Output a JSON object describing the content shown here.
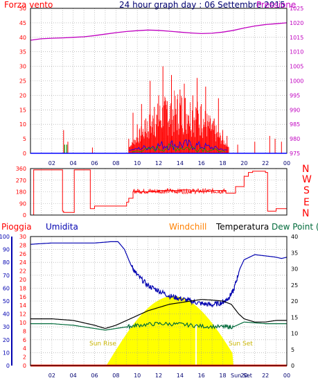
{
  "colors": {
    "background": "#ffffff",
    "grid": "#9a9a9a",
    "axis": "#000000",
    "wind": "#ff0000",
    "wind_gust": "#00a000",
    "wind_blue": "#0000ff",
    "pressure": "#c000c0",
    "direction": "#ff0000",
    "rain_axis": "#ff0000",
    "humidity": "#0000b0",
    "temperature": "#000000",
    "dewpoint": "#006a3a",
    "windchill": "#ff8000",
    "sun": "#ffff00",
    "sun_label": "#c8b400",
    "hour_axis": "#000070"
  },
  "titles": {
    "top_left": "Forza vento",
    "top_center": "24 hour graph day : 06 Settembre 2015",
    "top_right": "Pressione",
    "pioggia": "Pioggia",
    "umidita": "Umidita",
    "windchill": "Windchill",
    "temperatura": "Temperatura",
    "dewpoint": "Dew Point (°C"
  },
  "compass": [
    "N",
    "W",
    "S",
    "E",
    "N"
  ],
  "sun_labels": {
    "sunrise": "Sun Rise",
    "sunset": "Sun Set",
    "sunset_bottom": "Sun Set"
  },
  "chart_data": [
    {
      "type": "line",
      "name": "wind-pressure",
      "title": "24 hour graph day : 06 Settembre 2015",
      "xlabel": "",
      "ylabel": "Forza vento",
      "x_ticks": [
        "02",
        "04",
        "06",
        "08",
        "10",
        "12",
        "14",
        "16",
        "18",
        "20",
        "22",
        "00"
      ],
      "ylim": [
        0,
        50
      ],
      "y_ticks": [
        0,
        5,
        10,
        15,
        20,
        25,
        30,
        35,
        40,
        45,
        50
      ],
      "y2lim": [
        975,
        1025
      ],
      "y2_ticks": [
        975,
        980,
        985,
        990,
        995,
        1000,
        1005,
        1010,
        1015,
        1020,
        1025
      ],
      "y2label": "Pressione",
      "grid": true,
      "series": [
        {
          "name": "Pressione",
          "axis": "right",
          "x": [
            0,
            1,
            2,
            3,
            4,
            5,
            6,
            7,
            8,
            9,
            10,
            11,
            12,
            13,
            14,
            15,
            16,
            17,
            18,
            19,
            20,
            21,
            22,
            23,
            24
          ],
          "y": [
            1014,
            1014.5,
            1014.7,
            1014.8,
            1015,
            1015.2,
            1015.6,
            1016.1,
            1016.6,
            1017,
            1017.3,
            1017.5,
            1017.4,
            1017.1,
            1016.8,
            1016.5,
            1016.3,
            1016.4,
            1016.8,
            1017.4,
            1018.2,
            1018.9,
            1019.4,
            1019.7,
            1020
          ]
        },
        {
          "name": "Forza vento",
          "axis": "left",
          "x": [
            3.1,
            3.5,
            5.8,
            9.2,
            9.6,
            10.0,
            10.4,
            10.8,
            11.2,
            11.6,
            12.0,
            12.4,
            12.8,
            13.2,
            13.6,
            14.0,
            14.4,
            14.8,
            15.2,
            15.6,
            16.0,
            16.4,
            16.8,
            17.2,
            17.6,
            18.0,
            18.4,
            19.4,
            21.0,
            22.4,
            22.9,
            23.5
          ],
          "y": [
            8,
            4,
            2,
            5,
            14,
            10,
            17,
            12,
            25,
            16,
            20,
            30,
            18,
            27,
            15,
            22,
            24,
            13,
            20,
            26,
            17,
            23,
            11,
            12,
            19,
            8,
            6,
            3,
            4,
            6,
            5,
            4
          ]
        }
      ]
    },
    {
      "type": "line",
      "name": "wind-direction",
      "ylim": [
        0,
        360
      ],
      "y_ticks": [
        0,
        90,
        180,
        270,
        360
      ],
      "grid": true,
      "series": [
        {
          "name": "Direzione",
          "x": [
            0,
            0.3,
            2.0,
            3.0,
            3.1,
            4.0,
            4.1,
            5.5,
            5.6,
            6.0,
            8.8,
            9.0,
            9.2,
            9.6,
            12,
            14,
            15,
            17,
            18.3,
            19.2,
            19.5,
            20,
            20.4,
            20.8,
            22,
            22.2,
            23,
            24
          ],
          "y": [
            0,
            350,
            350,
            30,
            20,
            20,
            350,
            350,
            50,
            70,
            70,
            100,
            130,
            180,
            190,
            195,
            185,
            190,
            170,
            220,
            220,
            300,
            330,
            340,
            330,
            30,
            50,
            40
          ]
        }
      ]
    },
    {
      "type": "line",
      "name": "rain-humidity-temperature",
      "x_ticks": [
        "02",
        "04",
        "06",
        "08",
        "10",
        "12",
        "14",
        "16",
        "18",
        "20",
        "22",
        "00"
      ],
      "y_left_outer": {
        "label": "Umidita",
        "ylim": [
          0,
          100
        ],
        "ticks": [
          0,
          10,
          20,
          30,
          40,
          50,
          60,
          70,
          80,
          90,
          100
        ]
      },
      "y_left_inner": {
        "label": "Pioggia",
        "ylim": [
          0,
          30
        ],
        "ticks": [
          0,
          2,
          4,
          6,
          8,
          10,
          12,
          14,
          16,
          18,
          20,
          22,
          24,
          26,
          28,
          30
        ]
      },
      "y_right": {
        "label": "Temperatura",
        "ylim": [
          0,
          40
        ],
        "ticks": [
          0,
          5,
          10,
          15,
          20,
          25,
          30,
          35,
          40
        ]
      },
      "grid": true,
      "series": [
        {
          "name": "Umidita",
          "axis": "outer",
          "x": [
            0,
            2,
            4,
            6,
            7.5,
            8.2,
            8.8,
            9.4,
            10,
            11,
            12,
            13,
            14,
            15,
            16,
            17,
            18,
            18.5,
            19,
            19.6,
            20,
            21,
            22,
            23,
            23.5,
            24
          ],
          "y": [
            94,
            95,
            95,
            95,
            96,
            96,
            90,
            78,
            70,
            62,
            58,
            54,
            52,
            50,
            48,
            47,
            49,
            52,
            58,
            75,
            82,
            86,
            85,
            84,
            83,
            84
          ]
        },
        {
          "name": "Temperatura",
          "axis": "right",
          "x": [
            0,
            2,
            4,
            6,
            7,
            8,
            9,
            10,
            11,
            12,
            13,
            14,
            15,
            16,
            17,
            18,
            18.8,
            19.5,
            20,
            21,
            22,
            23,
            24
          ],
          "y": [
            14.5,
            14.5,
            14,
            12.5,
            11.5,
            12.5,
            14,
            15.5,
            17,
            18,
            19,
            19.5,
            20,
            20.5,
            20.3,
            20,
            19,
            16,
            14.5,
            13.5,
            13.5,
            14,
            14
          ]
        },
        {
          "name": "Dew Point",
          "axis": "right",
          "x": [
            0,
            2,
            4,
            6,
            7,
            8,
            9,
            10,
            12,
            14,
            16,
            18,
            19,
            20,
            22,
            24
          ],
          "y": [
            13,
            13,
            12.5,
            11.5,
            11,
            11.5,
            12,
            12.5,
            13,
            12.8,
            12.2,
            12,
            12,
            13.5,
            13,
            13
          ]
        },
        {
          "name": "Windchill",
          "axis": "right",
          "x": [
            0,
            24
          ],
          "y": [
            0,
            0
          ]
        },
        {
          "name": "Pioggia",
          "axis": "inner",
          "x": [
            0,
            24
          ],
          "y": [
            0,
            0
          ]
        }
      ],
      "sun": {
        "sunrise": 7.1,
        "sunset": 19.0
      }
    }
  ]
}
